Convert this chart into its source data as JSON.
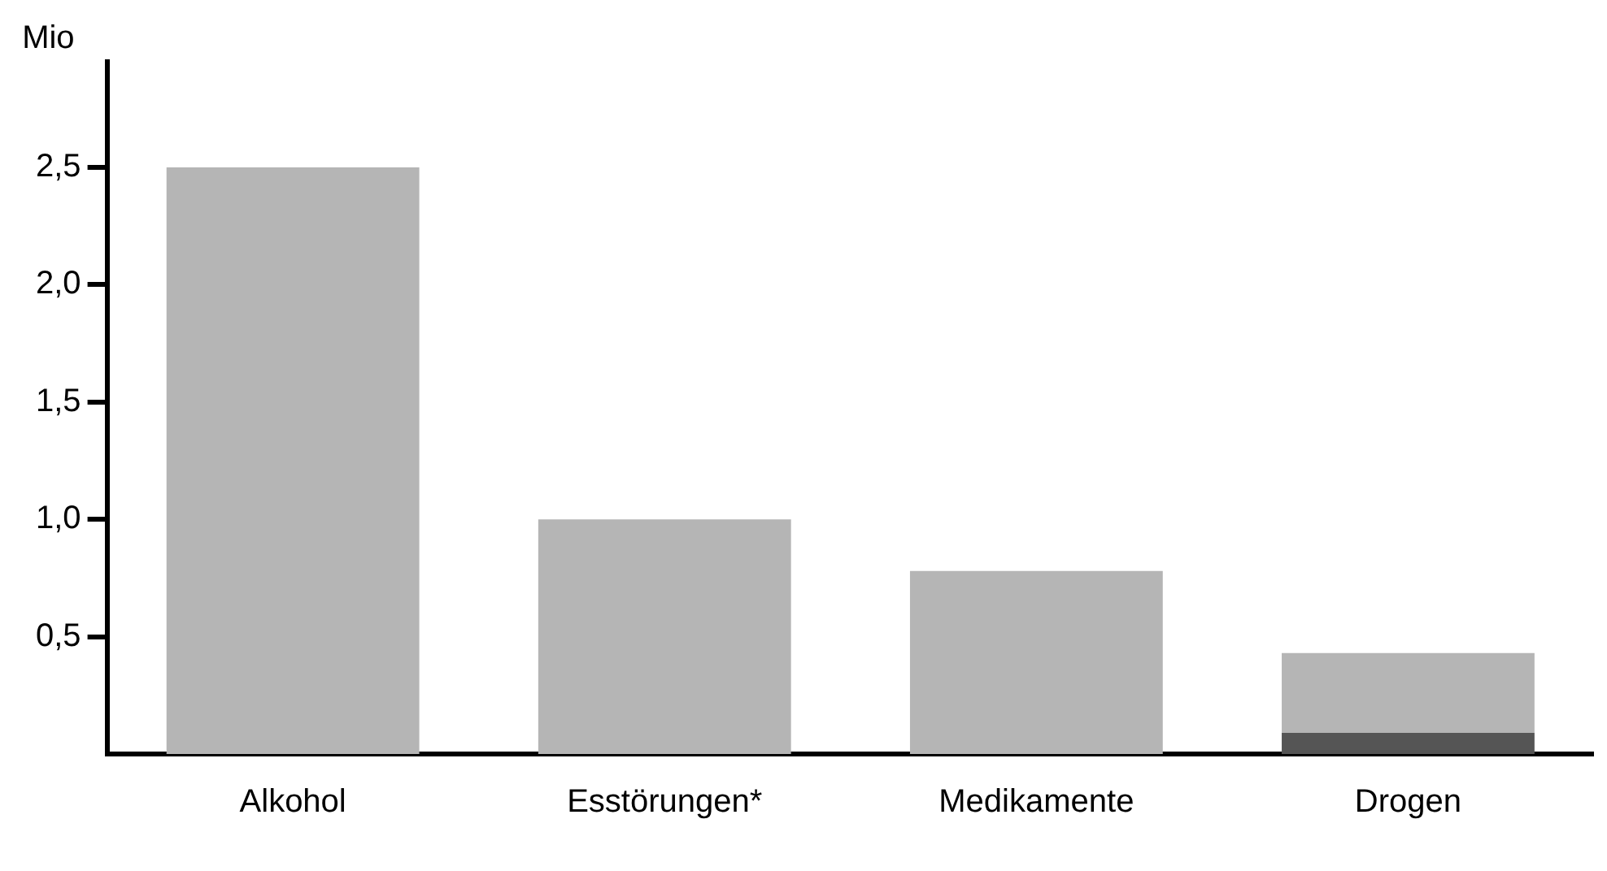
{
  "chart_data": {
    "type": "bar",
    "ylabel": "Mio",
    "stacked": true,
    "categories": [
      "Alkohol",
      "Esstörungen*",
      "Medikamente",
      "Drogen"
    ],
    "series": [
      {
        "color": "#555555",
        "values": [
          null,
          null,
          null,
          0.09
        ]
      },
      {
        "color": "#b5b5b5",
        "values": [
          2.5,
          1.0,
          0.78,
          0.34
        ]
      }
    ],
    "ylim": [
      0,
      2.95
    ],
    "yticks": [
      {
        "value": 0.5,
        "label": "0,5"
      },
      {
        "value": 1,
        "label": "1,0"
      },
      {
        "value": 1.5,
        "label": "1,5"
      },
      {
        "value": 2,
        "label": "2,0"
      },
      {
        "value": 2.5,
        "label": "2,5"
      }
    ],
    "grid": false,
    "legend": false
  }
}
